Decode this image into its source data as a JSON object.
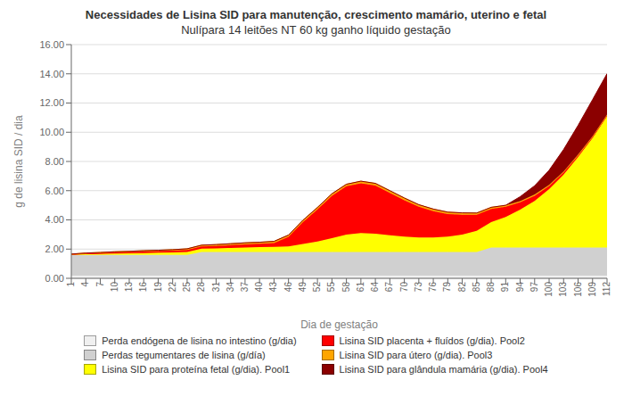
{
  "chart_data": {
    "type": "area",
    "stacked": true,
    "title": "Necessidades de Lisina SID para manutenção, crescimento mamário, uterino e fetal",
    "subtitle": "Nulípara 14 leitões NT 60 kg ganho líquido gestação",
    "x_label": "Dia de gestação",
    "y_label": "g de lisina SID / dia",
    "x": [
      1,
      4,
      7,
      10,
      13,
      16,
      19,
      22,
      25,
      28,
      31,
      34,
      37,
      40,
      43,
      46,
      49,
      52,
      55,
      58,
      61,
      64,
      67,
      70,
      73,
      76,
      79,
      82,
      85,
      88,
      91,
      94,
      97,
      100,
      103,
      106,
      109,
      112
    ],
    "xlim": [
      1,
      112
    ],
    "xticks": [
      1,
      4,
      7,
      10,
      13,
      16,
      19,
      22,
      25,
      28,
      31,
      34,
      37,
      40,
      43,
      46,
      49,
      52,
      55,
      58,
      61,
      64,
      67,
      70,
      73,
      76,
      79,
      82,
      85,
      88,
      91,
      94,
      97,
      100,
      103,
      106,
      109,
      112
    ],
    "ylim": [
      0,
      16
    ],
    "yticks": [
      {
        "value": 0,
        "label": "0.00"
      },
      {
        "value": 2,
        "label": "2.00"
      },
      {
        "value": 4,
        "label": "4.00"
      },
      {
        "value": 6,
        "label": "6.00"
      },
      {
        "value": 8,
        "label": "8.00"
      },
      {
        "value": 10,
        "label": "10.00"
      },
      {
        "value": 12,
        "label": "12.00"
      },
      {
        "value": 14,
        "label": "14.00"
      },
      {
        "value": 16,
        "label": "16.00"
      }
    ],
    "grid": "y",
    "legend": "bottom",
    "series": [
      {
        "name": "Perda endógena de lisina no intestino (g/dia)",
        "color": "#f0f0f0",
        "values": [
          0.18,
          0.18,
          0.18,
          0.18,
          0.18,
          0.18,
          0.18,
          0.18,
          0.18,
          0.18,
          0.18,
          0.18,
          0.18,
          0.18,
          0.18,
          0.18,
          0.18,
          0.18,
          0.18,
          0.18,
          0.18,
          0.18,
          0.18,
          0.18,
          0.18,
          0.18,
          0.18,
          0.18,
          0.18,
          0.18,
          0.18,
          0.18,
          0.18,
          0.18,
          0.18,
          0.18,
          0.18,
          0.18
        ]
      },
      {
        "name": "Perdas tegumentares de lisina (g/día)",
        "color": "#d0d0d0",
        "values": [
          1.42,
          1.42,
          1.42,
          1.42,
          1.42,
          1.42,
          1.42,
          1.42,
          1.42,
          1.62,
          1.62,
          1.62,
          1.62,
          1.62,
          1.62,
          1.62,
          1.62,
          1.62,
          1.62,
          1.62,
          1.62,
          1.62,
          1.62,
          1.62,
          1.62,
          1.62,
          1.62,
          1.62,
          1.62,
          1.92,
          1.92,
          1.92,
          1.92,
          1.92,
          1.92,
          1.92,
          1.92,
          1.92
        ]
      },
      {
        "name": "Lisina SID para proteína fetal (g/dia). Pool1",
        "color": "#ffff00",
        "values": [
          0.02,
          0.05,
          0.07,
          0.09,
          0.11,
          0.13,
          0.15,
          0.17,
          0.2,
          0.23,
          0.25,
          0.28,
          0.31,
          0.33,
          0.36,
          0.39,
          0.55,
          0.72,
          0.95,
          1.2,
          1.3,
          1.25,
          1.15,
          1.05,
          1.0,
          1.0,
          1.05,
          1.2,
          1.45,
          1.75,
          2.1,
          2.6,
          3.2,
          4.0,
          5.0,
          6.2,
          7.5,
          9.0
        ]
      },
      {
        "name": "Lisina SID placenta + fluídos (g/dia). Pool2",
        "color": "#ff0000",
        "values": [
          0.02,
          0.05,
          0.06,
          0.08,
          0.09,
          0.1,
          0.11,
          0.12,
          0.14,
          0.15,
          0.17,
          0.19,
          0.21,
          0.23,
          0.25,
          0.65,
          1.5,
          2.2,
          2.9,
          3.3,
          3.4,
          3.3,
          2.9,
          2.5,
          2.1,
          1.8,
          1.55,
          1.35,
          1.1,
          0.9,
          0.7,
          0.5,
          0.35,
          0.22,
          0.15,
          0.1,
          0.07,
          0.05
        ]
      },
      {
        "name": "Lisina SID para útero (g/dia). Pool3",
        "color": "#ffa500",
        "values": [
          0.02,
          0.03,
          0.04,
          0.05,
          0.05,
          0.06,
          0.06,
          0.07,
          0.08,
          0.09,
          0.09,
          0.1,
          0.11,
          0.11,
          0.12,
          0.12,
          0.13,
          0.13,
          0.14,
          0.14,
          0.15,
          0.15,
          0.15,
          0.15,
          0.14,
          0.14,
          0.13,
          0.13,
          0.12,
          0.11,
          0.1,
          0.09,
          0.09,
          0.08,
          0.07,
          0.07,
          0.06,
          0.06
        ]
      },
      {
        "name": "Lisina SID para glândula mamária (g/dia). Pool4",
        "color": "#8b0000",
        "values": [
          0.0,
          0.0,
          0.0,
          0.0,
          0.0,
          0.0,
          0.0,
          0.0,
          0.0,
          0.0,
          0.0,
          0.0,
          0.0,
          0.0,
          0.0,
          0.0,
          0.0,
          0.0,
          0.0,
          0.0,
          0.0,
          0.0,
          0.0,
          0.0,
          0.0,
          0.0,
          0.0,
          0.0,
          0.0,
          0.0,
          0.0,
          0.3,
          0.6,
          1.0,
          1.5,
          2.0,
          2.5,
          2.8
        ]
      }
    ]
  }
}
